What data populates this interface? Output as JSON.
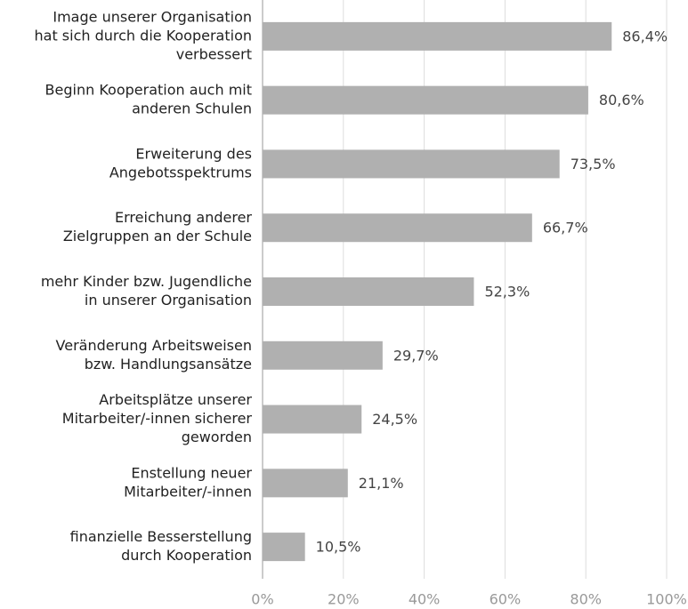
{
  "chart_data": {
    "type": "barh",
    "categories": [
      [
        "Image unserer Organisation",
        "hat sich durch die Kooperation",
        "verbessert"
      ],
      [
        "Beginn Kooperation auch mit",
        "anderen Schulen"
      ],
      [
        "Erweiterung des",
        "Angebotsspektrums"
      ],
      [
        "Erreichung anderer",
        "Zielgruppen an der Schule"
      ],
      [
        "mehr Kinder bzw. Jugendliche",
        "in unserer Organisation"
      ],
      [
        "Veränderung Arbeitsweisen",
        "bzw. Handlungsansätze"
      ],
      [
        "Arbeitsplätze unserer",
        "Mitarbeiter/-innen sicherer",
        "geworden"
      ],
      [
        "Enstellung neuer",
        "Mitarbeiter/-innen"
      ],
      [
        "finanzielle Besserstellung",
        "durch Kooperation"
      ]
    ],
    "values": [
      86.4,
      80.6,
      73.5,
      66.7,
      52.3,
      29.7,
      24.5,
      21.1,
      10.5
    ],
    "value_labels": [
      "86,4%",
      "80,6%",
      "73,5%",
      "66,7%",
      "52,3%",
      "29,7%",
      "24,5%",
      "21,1%",
      "10,5%"
    ],
    "color": "#b0b0b0",
    "xlim": [
      0,
      100
    ],
    "xticks": [
      {
        "value": 0,
        "label": "0%"
      },
      {
        "value": 20,
        "label": "20%"
      },
      {
        "value": 40,
        "label": "40%"
      },
      {
        "value": 60,
        "label": "60%"
      },
      {
        "value": 80,
        "label": "80%"
      },
      {
        "value": 100,
        "label": "100%"
      }
    ],
    "grid": true
  }
}
